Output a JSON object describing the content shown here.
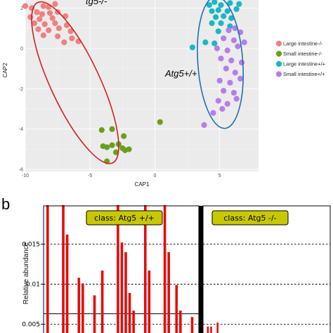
{
  "chart_data": [
    {
      "type": "scatter",
      "xlabel": "CAP1",
      "ylabel": "CAP2",
      "xlim": [
        -10,
        8
      ],
      "ylim": [
        -6.1,
        2.4
      ],
      "x_ticks": [
        -10,
        -5,
        0,
        5
      ],
      "y_ticks": [
        2,
        0,
        -2,
        -4,
        -6
      ],
      "grid": true,
      "legend_position": "right",
      "annotations": [
        "Atg5+/+"
      ],
      "annotations_partial": [
        "tg5-/-"
      ],
      "colors": {
        "Large intestine-/-": "#f08080",
        "Small intestine-/-": "#6a9f1e",
        "Large intestine+/+": "#1ab7c4",
        "Small intestine+/+": "#b57ee8",
        "ellipse_knockout": "#d42020",
        "ellipse_wildtype": "#1f6fb0"
      },
      "series": [
        {
          "name": "Large intestine-/-",
          "points": [
            [
              -10.0,
              2.1
            ],
            [
              -9.5,
              2.0
            ],
            [
              -8.6,
              2.1
            ],
            [
              -8.2,
              2.05
            ],
            [
              -7.7,
              2.2
            ],
            [
              -9.1,
              1.8
            ],
            [
              -8.7,
              1.7
            ],
            [
              -8.1,
              1.75
            ],
            [
              -7.5,
              1.8
            ],
            [
              -9.6,
              1.55
            ],
            [
              -8.9,
              1.45
            ],
            [
              -7.9,
              1.5
            ],
            [
              -6.9,
              1.6
            ],
            [
              -9.3,
              1.25
            ],
            [
              -8.5,
              1.2
            ],
            [
              -7.7,
              1.25
            ],
            [
              -6.8,
              1.15
            ],
            [
              -9.0,
              0.95
            ],
            [
              -8.2,
              0.9
            ],
            [
              -7.4,
              1.0
            ],
            [
              -6.5,
              0.85
            ],
            [
              -8.6,
              0.65
            ],
            [
              -7.5,
              0.6
            ],
            [
              -6.4,
              0.5
            ],
            [
              -7.0,
              0.3
            ],
            [
              -5.9,
              0.35
            ]
          ]
        },
        {
          "name": "Small intestine-/-",
          "points": [
            [
              -4.1,
              -4.05
            ],
            [
              -3.3,
              -4.0
            ],
            [
              -2.4,
              -4.35
            ],
            [
              -4.0,
              -4.85
            ],
            [
              -3.7,
              -4.9
            ],
            [
              -3.3,
              -4.8
            ],
            [
              -2.8,
              -4.75
            ],
            [
              -2.5,
              -4.95
            ],
            [
              -3.0,
              -5.15
            ],
            [
              -2.3,
              -5.05
            ],
            [
              -2.0,
              -5.0
            ],
            [
              -3.7,
              -5.6
            ],
            [
              0.4,
              -3.65
            ]
          ]
        },
        {
          "name": "Large intestine+/+",
          "points": [
            [
              4.2,
              2.15
            ],
            [
              4.6,
              2.3
            ],
            [
              5.1,
              2.15
            ],
            [
              5.8,
              2.25
            ],
            [
              6.5,
              2.2
            ],
            [
              4.4,
              1.85
            ],
            [
              4.9,
              1.9
            ],
            [
              5.6,
              1.85
            ],
            [
              6.3,
              1.95
            ],
            [
              4.7,
              1.55
            ],
            [
              5.3,
              1.6
            ],
            [
              5.9,
              1.5
            ],
            [
              4.4,
              1.25
            ],
            [
              5.1,
              1.25
            ],
            [
              5.8,
              1.1
            ],
            [
              4.9,
              0.85
            ],
            [
              2.9,
              0.05
            ],
            [
              3.9,
              0.3
            ],
            [
              4.6,
              0.25
            ]
          ]
        },
        {
          "name": "Small intestine+/+",
          "points": [
            [
              5.7,
              0.9
            ],
            [
              6.2,
              1.0
            ],
            [
              6.6,
              0.8
            ],
            [
              5.3,
              0.5
            ],
            [
              6.1,
              0.4
            ],
            [
              6.9,
              0.3
            ],
            [
              4.8,
              0.0
            ],
            [
              5.6,
              -0.1
            ],
            [
              6.4,
              0.1
            ],
            [
              5.1,
              -0.5
            ],
            [
              5.9,
              -0.6
            ],
            [
              6.7,
              -0.7
            ],
            [
              5.5,
              -1.0
            ],
            [
              6.2,
              -1.2
            ],
            [
              5.0,
              -1.6
            ],
            [
              5.8,
              -1.7
            ],
            [
              6.6,
              -1.5
            ],
            [
              5.3,
              -2.1
            ],
            [
              6.1,
              -2.2
            ],
            [
              4.9,
              -2.6
            ],
            [
              5.6,
              -2.75
            ],
            [
              6.3,
              -2.5
            ],
            [
              4.5,
              -3.2
            ],
            [
              5.2,
              -3.0
            ],
            [
              3.8,
              -3.8
            ]
          ]
        }
      ]
    },
    {
      "type": "bar",
      "ylabel": "Relative abundance",
      "y_ticks": [
        0.015,
        0.01,
        0.005
      ],
      "ylim": [
        0.0039,
        0.0197
      ],
      "reference_line": 0.0063,
      "facets": [
        {
          "label": "class: Atg5 +/+",
          "values": [
            0.02,
            0.0,
            0.0,
            0.0,
            0.02,
            0.0162,
            0.0,
            0.0,
            0.0108,
            0.0101,
            0.0,
            0.0,
            0.0086,
            0.0,
            0.0117,
            0.0,
            0.0,
            0.0,
            0.02,
            0.0152,
            0.014,
            0.0089,
            0.0067,
            0.0,
            0.0,
            0.02,
            0.0117,
            0.0,
            0.0,
            0.0,
            0.02,
            0.014,
            0.0,
            0.0099,
            0.0067,
            0.0,
            0.0,
            0.0059,
            0.0
          ]
        },
        {
          "label": "class: Atg5 -/-",
          "values": [
            0.0,
            0.0047,
            0.0047,
            0.0,
            0.0052,
            0.0
          ]
        }
      ],
      "colors": {
        "bar": "#e30d0d",
        "strip": "#c8c800",
        "divider": "#000000"
      }
    }
  ],
  "labels": {
    "panel_b": "b"
  }
}
